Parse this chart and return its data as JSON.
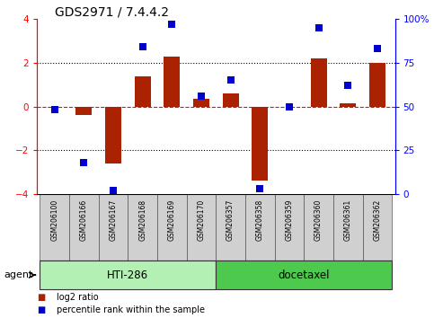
{
  "title": "GDS2971 / 7.4.4.2",
  "samples": [
    "GSM206100",
    "GSM206166",
    "GSM206167",
    "GSM206168",
    "GSM206169",
    "GSM206170",
    "GSM206357",
    "GSM206358",
    "GSM206359",
    "GSM206360",
    "GSM206361",
    "GSM206362"
  ],
  "log2_ratio": [
    0.0,
    -0.4,
    -2.6,
    1.4,
    2.3,
    0.35,
    0.6,
    -3.4,
    0.0,
    2.2,
    0.15,
    2.0
  ],
  "percentile_rank": [
    48,
    18,
    2,
    84,
    97,
    56,
    65,
    3,
    50,
    95,
    62,
    83
  ],
  "groups": [
    {
      "label": "HTI-286",
      "start": 0,
      "end": 5,
      "color": "#b3f0b3"
    },
    {
      "label": "docetaxel",
      "start": 6,
      "end": 11,
      "color": "#4dc94d"
    }
  ],
  "bar_color": "#aa2200",
  "dot_color": "#0000cc",
  "ylim_left": [
    -4,
    4
  ],
  "yticks_left": [
    -4,
    -2,
    0,
    2,
    4
  ],
  "yticks_right_vals": [
    -4,
    -2,
    0,
    2,
    4
  ],
  "yticklabels_right": [
    "0",
    "25",
    "50",
    "75",
    "100%"
  ],
  "background_color": "#ffffff",
  "agent_label": "agent",
  "legend_log2": "log2 ratio",
  "legend_pct": "percentile rank within the sample",
  "bar_width": 0.55,
  "dot_size": 35,
  "title_fontsize": 10,
  "tick_fontsize": 7.5,
  "sample_fontsize": 5.5,
  "group_fontsize": 8.5
}
